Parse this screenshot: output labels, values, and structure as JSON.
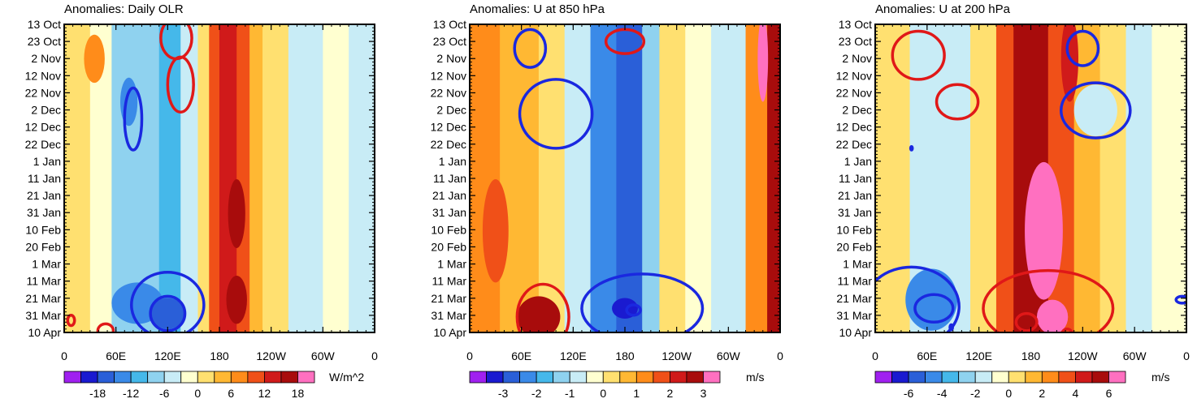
{
  "chart_data": [
    {
      "type": "heatmap",
      "title": "Anomalies: Daily OLR",
      "units": "W/m^2",
      "y_ticks": [
        "13 Oct",
        "23 Oct",
        "2 Nov",
        "12 Nov",
        "22 Nov",
        "2 Dec",
        "12 Dec",
        "22 Dec",
        "1 Jan",
        "11 Jan",
        "21 Jan",
        "31 Jan",
        "10 Feb",
        "20 Feb",
        "1 Mar",
        "11 Mar",
        "21 Mar",
        "31 Mar",
        "10 Apr"
      ],
      "x_ticks": [
        "0",
        "60E",
        "120E",
        "180",
        "120W",
        "60W",
        "0"
      ],
      "xlim_deg": [
        0,
        360
      ],
      "colorbar_levels": [
        -21,
        -18,
        -15,
        -12,
        -9,
        -6,
        -3,
        0,
        3,
        6,
        9,
        12,
        15,
        18,
        21
      ],
      "colorbar_labels": [
        -18,
        -12,
        -6,
        0,
        6,
        12,
        18
      ],
      "columns": [
        {
          "lon": [
            0,
            30
          ],
          "v": 3
        },
        {
          "lon": [
            30,
            55
          ],
          "v": -2
        },
        {
          "lon": [
            55,
            75
          ],
          "v": -8
        },
        {
          "lon": [
            75,
            110
          ],
          "v": -6
        },
        {
          "lon": [
            110,
            135
          ],
          "v": -10
        },
        {
          "lon": [
            135,
            155
          ],
          "v": -4
        },
        {
          "lon": [
            155,
            168
          ],
          "v": 3
        },
        {
          "lon": [
            168,
            180
          ],
          "v": 10
        },
        {
          "lon": [
            180,
            200
          ],
          "v": 15
        },
        {
          "lon": [
            200,
            215
          ],
          "v": 10
        },
        {
          "lon": [
            215,
            230
          ],
          "v": 4
        },
        {
          "lon": [
            230,
            260
          ],
          "v": 1
        },
        {
          "lon": [
            260,
            300
          ],
          "v": -3
        },
        {
          "lon": [
            300,
            330
          ],
          "v": -2
        },
        {
          "lon": [
            330,
            360
          ],
          "v": -4
        }
      ],
      "blobs": [
        {
          "lon": 85,
          "day": 162,
          "rx": 30,
          "ry": 12,
          "v": -14
        },
        {
          "lon": 120,
          "day": 168,
          "rx": 20,
          "ry": 9,
          "v": -17
        },
        {
          "lon": 75,
          "day": 45,
          "rx": 10,
          "ry": 14,
          "v": -14
        },
        {
          "lon": 200,
          "day": 110,
          "rx": 10,
          "ry": 20,
          "v": 18
        },
        {
          "lon": 200,
          "day": 160,
          "rx": 12,
          "ry": 14,
          "v": 18
        },
        {
          "lon": 35,
          "day": 20,
          "rx": 12,
          "ry": 14,
          "v": 8
        }
      ],
      "contours_positive": [
        {
          "lon": 130,
          "day": 8,
          "rx": 18,
          "ry": 12
        },
        {
          "lon": 135,
          "day": 35,
          "rx": 15,
          "ry": 16
        },
        {
          "lon": 8,
          "day": 172,
          "rx": 4,
          "ry": 3
        },
        {
          "lon": 48,
          "day": 178,
          "rx": 9,
          "ry": 4
        }
      ],
      "contours_negative": [
        {
          "lon": 80,
          "day": 55,
          "rx": 10,
          "ry": 18
        },
        {
          "lon": 120,
          "day": 163,
          "rx": 42,
          "ry": 19
        },
        {
          "lon": 120,
          "day": 168,
          "rx": 20,
          "ry": 10
        }
      ]
    },
    {
      "type": "heatmap",
      "title": "Anomalies: U at 850 hPa",
      "units": "m/s",
      "y_ticks": [
        "13 Oct",
        "23 Oct",
        "2 Nov",
        "12 Nov",
        "22 Nov",
        "2 Dec",
        "12 Dec",
        "22 Dec",
        "1 Jan",
        "11 Jan",
        "21 Jan",
        "31 Jan",
        "10 Feb",
        "20 Feb",
        "1 Mar",
        "11 Mar",
        "21 Mar",
        "31 Mar",
        "10 Apr"
      ],
      "x_ticks": [
        "0",
        "60E",
        "120E",
        "180",
        "120W",
        "60W",
        "0"
      ],
      "xlim_deg": [
        0,
        360
      ],
      "colorbar_levels": [
        -3.5,
        -3,
        -2.5,
        -2,
        -1.5,
        -1,
        -0.5,
        0,
        0.5,
        1,
        1.5,
        2,
        2.5,
        3,
        3.5
      ],
      "colorbar_labels": [
        -3,
        -2,
        -1,
        0,
        1,
        2,
        3
      ],
      "columns": [
        {
          "lon": [
            0,
            35
          ],
          "v": 1.2
        },
        {
          "lon": [
            35,
            80
          ],
          "v": 0.7
        },
        {
          "lon": [
            80,
            110
          ],
          "v": 0.2
        },
        {
          "lon": [
            110,
            140
          ],
          "v": -0.7
        },
        {
          "lon": [
            140,
            170
          ],
          "v": -2.1
        },
        {
          "lon": [
            170,
            200
          ],
          "v": -2.6
        },
        {
          "lon": [
            200,
            220
          ],
          "v": -1.2
        },
        {
          "lon": [
            220,
            250
          ],
          "v": 0.3
        },
        {
          "lon": [
            250,
            280
          ],
          "v": -0.3
        },
        {
          "lon": [
            280,
            320
          ],
          "v": -0.8
        },
        {
          "lon": [
            320,
            345
          ],
          "v": 1.3
        },
        {
          "lon": [
            345,
            360
          ],
          "v": 2.6
        }
      ],
      "blobs": [
        {
          "lon": 80,
          "day": 170,
          "rx": 25,
          "ry": 12,
          "v": 2.8
        },
        {
          "lon": 180,
          "day": 165,
          "rx": 15,
          "ry": 6,
          "v": -3.4
        },
        {
          "lon": 340,
          "day": 20,
          "rx": 6,
          "ry": 25,
          "v": 3.2
        },
        {
          "lon": 30,
          "day": 120,
          "rx": 15,
          "ry": 30,
          "v": 1.6
        }
      ],
      "contours_positive": [
        {
          "lon": 180,
          "day": 10,
          "rx": 22,
          "ry": 7
        },
        {
          "lon": 85,
          "day": 170,
          "rx": 30,
          "ry": 19
        }
      ],
      "contours_negative": [
        {
          "lon": 70,
          "day": 14,
          "rx": 18,
          "ry": 11
        },
        {
          "lon": 100,
          "day": 52,
          "rx": 42,
          "ry": 20
        },
        {
          "lon": 200,
          "day": 165,
          "rx": 70,
          "ry": 20
        },
        {
          "lon": 190,
          "day": 166,
          "rx": 8,
          "ry": 3
        }
      ]
    },
    {
      "type": "heatmap",
      "title": "Anomalies: U at 200 hPa",
      "units": "m/s",
      "y_ticks": [
        "13 Oct",
        "23 Oct",
        "2 Nov",
        "12 Nov",
        "22 Nov",
        "2 Dec",
        "12 Dec",
        "22 Dec",
        "1 Jan",
        "11 Jan",
        "21 Jan",
        "31 Jan",
        "10 Feb",
        "20 Feb",
        "1 Mar",
        "11 Mar",
        "21 Mar",
        "31 Mar",
        "10 Apr"
      ],
      "x_ticks": [
        "0",
        "60E",
        "120E",
        "180",
        "120W",
        "60W",
        "0"
      ],
      "xlim_deg": [
        0,
        360
      ],
      "colorbar_levels": [
        -7,
        -6,
        -5,
        -4,
        -3,
        -2,
        -1,
        0,
        1,
        2,
        3,
        4,
        5,
        6,
        7
      ],
      "colorbar_labels": [
        -6,
        -4,
        -2,
        0,
        2,
        4,
        6
      ],
      "columns": [
        {
          "lon": [
            0,
            40
          ],
          "v": 0.4
        },
        {
          "lon": [
            40,
            70
          ],
          "v": -1.8
        },
        {
          "lon": [
            70,
            110
          ],
          "v": -1.2
        },
        {
          "lon": [
            110,
            140
          ],
          "v": 0.5
        },
        {
          "lon": [
            140,
            160
          ],
          "v": 3.5
        },
        {
          "lon": [
            160,
            200
          ],
          "v": 5.2
        },
        {
          "lon": [
            200,
            230
          ],
          "v": 3.2
        },
        {
          "lon": [
            230,
            260
          ],
          "v": 1.5
        },
        {
          "lon": [
            260,
            290
          ],
          "v": 0.2
        },
        {
          "lon": [
            290,
            320
          ],
          "v": -1.0
        },
        {
          "lon": [
            320,
            360
          ],
          "v": -0.4
        }
      ],
      "blobs": [
        {
          "lon": 65,
          "day": 160,
          "rx": 30,
          "ry": 18,
          "v": -4.2
        },
        {
          "lon": 195,
          "day": 120,
          "rx": 22,
          "ry": 40,
          "v": 6.2
        },
        {
          "lon": 205,
          "day": 170,
          "rx": 18,
          "ry": 10,
          "v": 6.6
        },
        {
          "lon": 225,
          "day": 20,
          "rx": 10,
          "ry": 25,
          "v": 4.6
        },
        {
          "lon": 255,
          "day": 50,
          "rx": 25,
          "ry": 15,
          "v": -1.0
        }
      ],
      "contours_positive": [
        {
          "lon": 50,
          "day": 18,
          "rx": 30,
          "ry": 14
        },
        {
          "lon": 95,
          "day": 45,
          "rx": 24,
          "ry": 10
        },
        {
          "lon": 200,
          "day": 165,
          "rx": 75,
          "ry": 22
        },
        {
          "lon": 175,
          "day": 173,
          "rx": 12,
          "ry": 5
        },
        {
          "lon": 222,
          "day": 180,
          "rx": 6,
          "ry": 3
        }
      ],
      "contours_negative": [
        {
          "lon": 240,
          "day": 14,
          "rx": 18,
          "ry": 10
        },
        {
          "lon": 255,
          "day": 50,
          "rx": 40,
          "ry": 16
        },
        {
          "lon": 42,
          "day": 164,
          "rx": 55,
          "ry": 23
        },
        {
          "lon": 68,
          "day": 165,
          "rx": 22,
          "ry": 8
        },
        {
          "lon": 355,
          "day": 160,
          "rx": 7,
          "ry": 2
        },
        {
          "lon": 42,
          "day": 72,
          "rx": 1,
          "ry": 1
        },
        {
          "lon": 88,
          "day": 176,
          "rx": 1.5,
          "ry": 1.5
        }
      ]
    }
  ]
}
